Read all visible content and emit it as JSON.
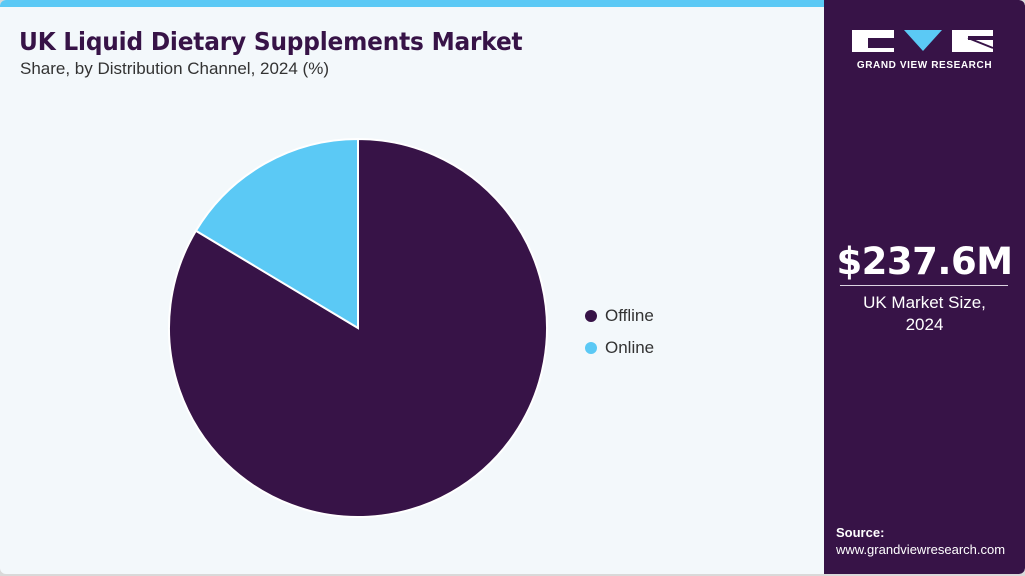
{
  "header": {
    "title": "UK Liquid Dietary Supplements Market",
    "subtitle": "Share, by Distribution Channel, 2024 (%)"
  },
  "legend": {
    "items": [
      {
        "label": "Offline",
        "color": "#371347"
      },
      {
        "label": "Online",
        "color": "#5bc9f5"
      }
    ]
  },
  "sidebar": {
    "logo_text": "GRAND VIEW RESEARCH",
    "market_value": "$237.6M",
    "market_label_line1": "UK Market Size,",
    "market_label_line2": "2024",
    "source_label": "Source:",
    "source_url": "www.grandviewresearch.com"
  },
  "colors": {
    "brand_purple": "#371347",
    "accent_blue": "#5bc9f5",
    "background": "#f3f8fb"
  },
  "chart_data": {
    "type": "pie",
    "title": "UK Liquid Dietary Supplements Market",
    "subtitle": "Share, by Distribution Channel, 2024 (%)",
    "categories": [
      "Offline",
      "Online"
    ],
    "values": [
      83.6,
      16.4
    ],
    "colors": [
      "#371347",
      "#5bc9f5"
    ],
    "start_angle": "12 o'clock, Offline clockwise",
    "legend_position": "right",
    "data_labels": false
  }
}
